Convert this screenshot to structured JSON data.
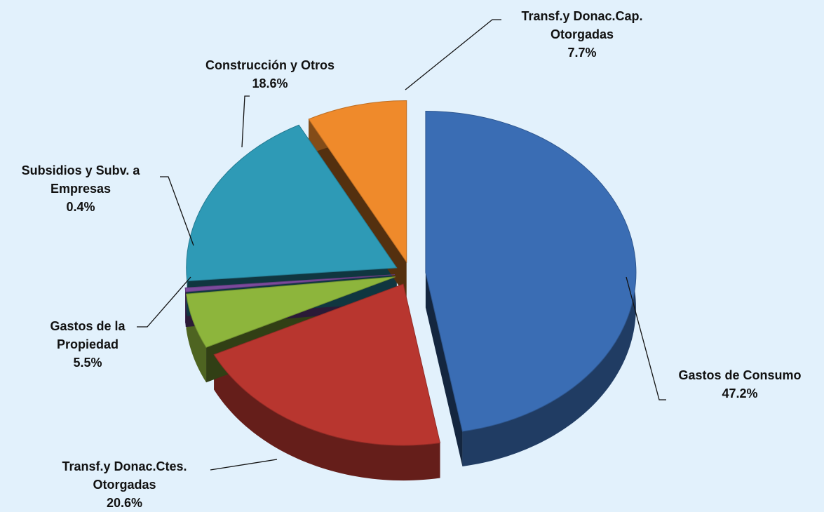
{
  "chart_data": {
    "type": "pie",
    "categories": [
      "Gastos de Consumo",
      "Transf.y Donac.Ctes. Otorgadas",
      "Gastos de la Propiedad",
      "Subsidios y Subv. a Empresas",
      "Construcción y Otros",
      "Transf.y Donac.Cap. Otorgadas"
    ],
    "values": [
      47.2,
      20.6,
      5.5,
      0.4,
      18.6,
      7.7
    ],
    "value_labels": [
      "47.2%",
      "20.6%",
      "5.5%",
      "0.4%",
      "18.6%",
      "7.7%"
    ],
    "colors": [
      "#3a6db4",
      "#b8362f",
      "#8db53c",
      "#7b4a9c",
      "#2e9ab6",
      "#ef8a2b"
    ]
  }
}
